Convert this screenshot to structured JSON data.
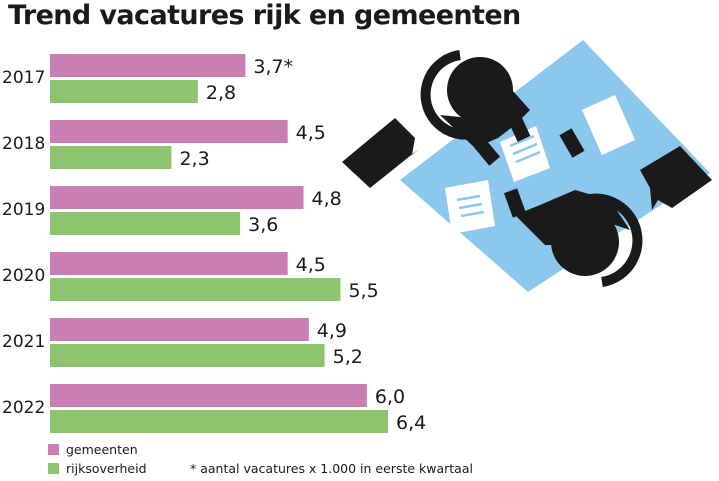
{
  "chart_data": {
    "type": "bar",
    "orientation": "horizontal",
    "title": "Trend vacatures rijk en gemeenten",
    "categories": [
      "2017",
      "2018",
      "2019",
      "2020",
      "2021",
      "2022"
    ],
    "series": [
      {
        "name": "gemeenten",
        "values": [
          3.7,
          4.5,
          4.8,
          4.5,
          4.9,
          6.0
        ],
        "labels": [
          "3,7*",
          "4,5",
          "4,8",
          "4,5",
          "4,9",
          "6,0"
        ],
        "color": "#c97fb3"
      },
      {
        "name": "rijksoverheid",
        "values": [
          2.8,
          2.3,
          3.6,
          5.5,
          5.2,
          6.4
        ],
        "labels": [
          "2,8",
          "2,3",
          "3,6",
          "5,5",
          "5,2",
          "6,4"
        ],
        "color": "#8ec46e"
      }
    ],
    "xlim": [
      0,
      6.4
    ],
    "grid": false,
    "legend_position": "bottom-left",
    "footnote": "*  aantal vacatures x 1.000 in eerste kwartaal"
  },
  "colors": {
    "illustration_table": "#8cc8ee",
    "illustration_figure": "#1a1a1a",
    "illustration_paper": "#ffffff"
  },
  "illustration": {
    "icon": "business-meeting-icon"
  }
}
